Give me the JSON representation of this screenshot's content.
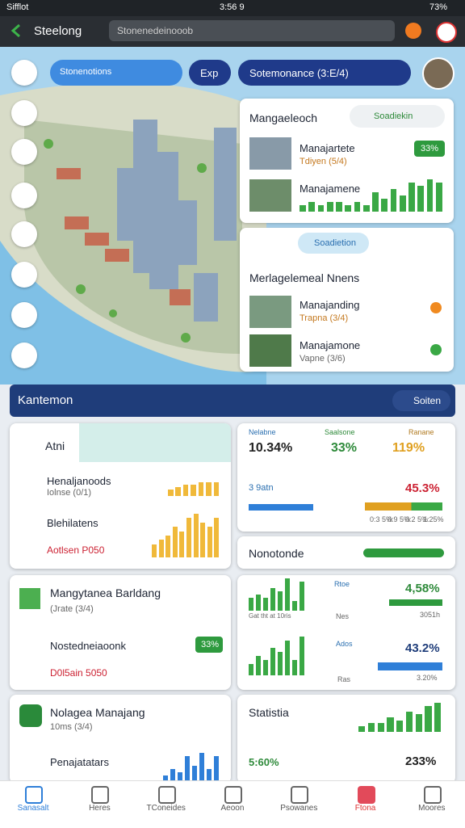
{
  "status_bar": {
    "carrier": "Sifflot",
    "time": "3:56 9",
    "battery": "73%"
  },
  "top_bar": {
    "title": "Steelong",
    "search": "Stonenedeinooob"
  },
  "map_controls": {
    "selector": "Stonenotions",
    "exp": "Exp",
    "summary": "Sotemonance (3:E/4)"
  },
  "panel_management": {
    "title": "Mangaeleoch",
    "badge": "Soadiekin",
    "items": [
      {
        "title": "Manajartete",
        "subtitle": "Tdiyen (5/4)",
        "badge": "33%"
      },
      {
        "title": "Manajamene",
        "bars": [
          2,
          3,
          2,
          3,
          3,
          2,
          3,
          2,
          6,
          4,
          7,
          5,
          9,
          8,
          10,
          9
        ],
        "color": "#3aa845"
      }
    ]
  },
  "panel_news": {
    "tab": "Soadietion",
    "title": "Merlagelemeal Nnens",
    "items": [
      {
        "title": "Manajanding",
        "subtitle": "Trapna (3/4)"
      },
      {
        "title": "Manajamone",
        "subtitle": "Vapne (3/6)"
      }
    ]
  },
  "section_bar": {
    "title": "Kantemon",
    "action": "Soiten"
  },
  "card_atni": {
    "title": "Atni",
    "rows": [
      {
        "title": "Henaljanoods",
        "subtitle": "Iolnse (0/1)"
      },
      {
        "title": "Blehilatens"
      },
      {
        "title": "Aotlsen P050"
      }
    ],
    "bars_small": [
      3,
      4,
      5,
      5,
      6,
      6,
      6
    ],
    "bars_large": [
      3,
      4,
      5,
      7,
      6,
      9,
      10,
      8,
      7,
      9
    ],
    "color": "#f0b93a"
  },
  "card_stats": {
    "columns": [
      {
        "label": "Nelabne",
        "value": "10.34%"
      },
      {
        "label": "Saalsone",
        "value": "33%"
      },
      {
        "label": "Ranane",
        "value": "119%"
      }
    ],
    "row": {
      "label": "3 9atn",
      "value": "45.3%"
    },
    "footer": [
      "0:3 5%",
      "0:9 5%",
      "0:2 5%",
      "1:25%"
    ]
  },
  "card_progress": {
    "title": "Nonotonde"
  },
  "card_building": {
    "title": "Mangytanea Barldang",
    "subtitle": "(Jrate (3/4)",
    "item": "Nostedneiaoonk",
    "badge": "33%",
    "footer": "D0l5ain 5050"
  },
  "card_charts": {
    "rows": [
      {
        "bars": [
          4,
          5,
          4,
          7,
          6,
          10,
          3,
          9
        ],
        "axis": "Gat tht at 10ris",
        "label": "Rtoe",
        "sub": "Nes",
        "value": "4,58%",
        "note": "3051h",
        "color": "#3aa845"
      },
      {
        "bars": [
          3,
          5,
          4,
          7,
          6,
          9,
          4,
          10
        ],
        "axis": "",
        "label": "Ados",
        "sub": "Ras",
        "value": "43.2%",
        "note": "3.20%",
        "color": "#3aa845"
      }
    ]
  },
  "card_app": {
    "title": "Nolagea Manajang",
    "subtitle": "10ms (3/4)",
    "item": "Penajatatars",
    "bars": [
      2,
      4,
      3,
      8,
      5,
      9,
      4,
      8
    ],
    "color": "#2f7fd8"
  },
  "card_stat2": {
    "title": "Statistia",
    "left": "5:60%",
    "right": "233%",
    "bars": [
      2,
      3,
      3,
      5,
      4,
      7,
      6,
      9,
      10
    ],
    "color": "#3aa845"
  },
  "bottom_nav": {
    "items": [
      "Sanasalt",
      "Heres",
      "TConeides",
      "Aeoon",
      "Psowanes",
      "Ftona",
      "Moores"
    ]
  }
}
